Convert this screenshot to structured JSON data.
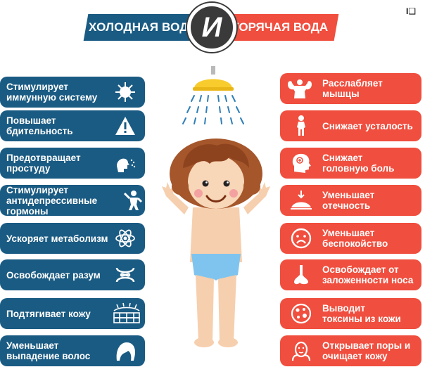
{
  "header": {
    "cold_title": "ХОЛОДНАЯ ВОДА",
    "and_label": "И",
    "hot_title": "ГОРЯЧАЯ ВОДА",
    "logo": "I❑"
  },
  "colors": {
    "cold": "#1a5b83",
    "hot": "#f04e3e",
    "center": "#3a3a3a"
  },
  "cold_benefits": [
    {
      "label": "Стимулирует\nиммунную систему",
      "icon": "virus-icon"
    },
    {
      "label": "Повышает\nбдительность",
      "icon": "warning-icon"
    },
    {
      "label": "Предотвращает\nпростуду",
      "icon": "sneeze-icon"
    },
    {
      "label": "Стимулирует\nантидепрессивные гормоны",
      "icon": "happy-person-icon"
    },
    {
      "label": "Ускоряет метаболизм",
      "icon": "atom-icon"
    },
    {
      "label": "Освобождает разум",
      "icon": "mind-icon"
    },
    {
      "label": "Подтягивает кожу",
      "icon": "skin-layers-icon"
    },
    {
      "label": "Уменьшает\nвыпадение волос",
      "icon": "hair-icon"
    }
  ],
  "hot_benefits": [
    {
      "label": "Расслабляет мышцы",
      "icon": "muscle-icon"
    },
    {
      "label": "Снижает усталость",
      "icon": "body-icon"
    },
    {
      "label": "Снижает\nголовную боль",
      "icon": "headache-icon"
    },
    {
      "label": "Уменьшает отечность",
      "icon": "swelling-icon"
    },
    {
      "label": "Уменьшает\nбеспокойство",
      "icon": "sad-face-icon"
    },
    {
      "label": "Освобождает от\nзаложенности носа",
      "icon": "nose-icon"
    },
    {
      "label": "Выводит\nтоксины из кожи",
      "icon": "toxin-icon"
    },
    {
      "label": "Открывает поры и\nочищает кожу",
      "icon": "face-clean-icon"
    }
  ]
}
